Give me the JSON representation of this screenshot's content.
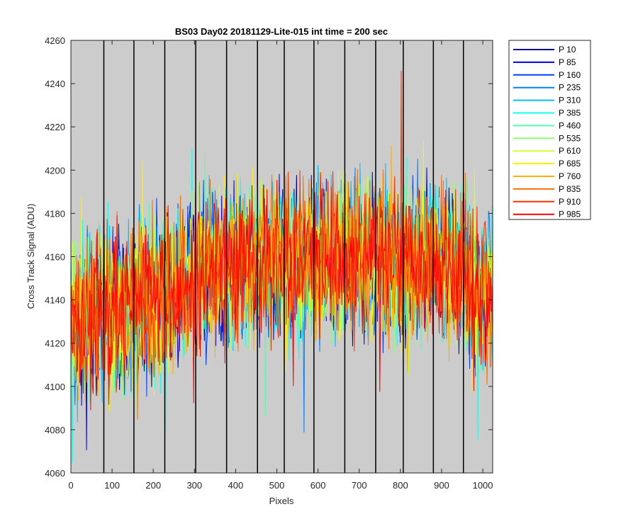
{
  "chart_data": {
    "type": "line",
    "title": "BS03 Day02 20181129-Lite-015 int time = 200 sec",
    "xlabel": "Pixels",
    "ylabel": "Cross Track Signal (ADU)",
    "xlim": [
      0,
      1024
    ],
    "ylim": [
      4060,
      4260
    ],
    "xticks": [
      0,
      100,
      200,
      300,
      400,
      500,
      600,
      700,
      800,
      900,
      1000
    ],
    "yticks": [
      4060,
      4080,
      4100,
      4120,
      4140,
      4160,
      4180,
      4200,
      4220,
      4240,
      4260
    ],
    "plot_background": "#cccccc",
    "grid": false,
    "vertical_lines_x": [
      80,
      153,
      228,
      303,
      378,
      453,
      518,
      590,
      665,
      740,
      807,
      880,
      953
    ],
    "legend_position": "outside-top-right",
    "series": [
      {
        "name": "P 10",
        "color": "#00008f"
      },
      {
        "name": "P 85",
        "color": "#0000df"
      },
      {
        "name": "P 160",
        "color": "#0040ff"
      },
      {
        "name": "P 235",
        "color": "#0080ff"
      },
      {
        "name": "P 310",
        "color": "#00bfff"
      },
      {
        "name": "P 385",
        "color": "#10ffef"
      },
      {
        "name": "P 460",
        "color": "#50ffaf"
      },
      {
        "name": "P 535",
        "color": "#8fff70"
      },
      {
        "name": "P 610",
        "color": "#cfff30"
      },
      {
        "name": "P 685",
        "color": "#ffef00"
      },
      {
        "name": "P 760",
        "color": "#ffaf00"
      },
      {
        "name": "P 835",
        "color": "#ff7000"
      },
      {
        "name": "P 910",
        "color": "#ff3000"
      },
      {
        "name": "P 985",
        "color": "#ff0000"
      }
    ],
    "trend": {
      "x": [
        0,
        20,
        50,
        100,
        150,
        200,
        250,
        300,
        350,
        400,
        450,
        500,
        550,
        600,
        650,
        700,
        750,
        800,
        850,
        900,
        950,
        980,
        1000,
        1024
      ],
      "y": [
        4126,
        4132,
        4134,
        4134,
        4136,
        4140,
        4144,
        4150,
        4154,
        4156,
        4157,
        4158,
        4159,
        4159,
        4159,
        4159,
        4159,
        4158,
        4158,
        4157,
        4154,
        4148,
        4142,
        4134
      ]
    },
    "noise_amplitude": 30
  }
}
